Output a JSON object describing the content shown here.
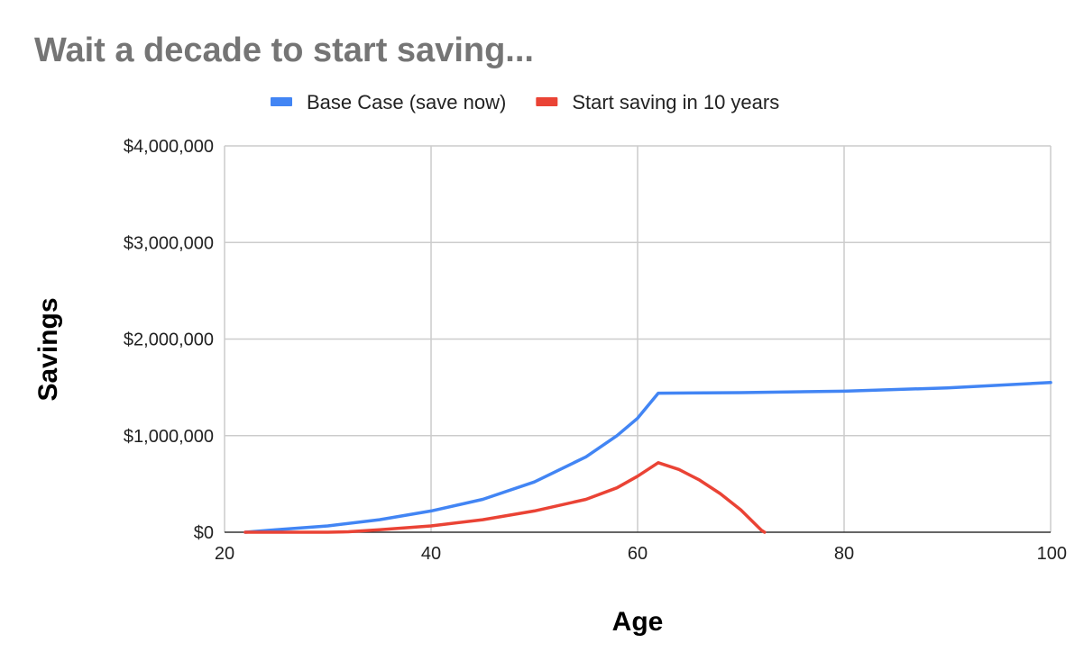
{
  "chart_data": {
    "type": "line",
    "title": "Wait a decade to start saving...",
    "xlabel": "Age",
    "ylabel": "Savings",
    "xlim": [
      20,
      100
    ],
    "ylim": [
      0,
      4000000
    ],
    "x_ticks": [
      20,
      40,
      60,
      80,
      100
    ],
    "x_tick_labels": [
      "20",
      "40",
      "60",
      "80",
      "100"
    ],
    "y_ticks": [
      0,
      1000000,
      2000000,
      3000000,
      4000000
    ],
    "y_tick_labels": [
      "$0",
      "$1,000,000",
      "$2,000,000",
      "$3,000,000",
      "$4,000,000"
    ],
    "grid": true,
    "legend_position": "top",
    "series": [
      {
        "name": "Base Case (save now)",
        "color": "#4285f4",
        "points": [
          [
            22,
            0
          ],
          [
            25,
            25000
          ],
          [
            30,
            65000
          ],
          [
            35,
            130000
          ],
          [
            40,
            220000
          ],
          [
            45,
            340000
          ],
          [
            50,
            520000
          ],
          [
            55,
            780000
          ],
          [
            58,
            1000000
          ],
          [
            60,
            1180000
          ],
          [
            62,
            1440000
          ],
          [
            70,
            1445000
          ],
          [
            80,
            1460000
          ],
          [
            90,
            1495000
          ],
          [
            100,
            1550000
          ]
        ]
      },
      {
        "name": "Start saving in 10 years",
        "color": "#ea4335",
        "points": [
          [
            22,
            0
          ],
          [
            30,
            0
          ],
          [
            32,
            5000
          ],
          [
            35,
            25000
          ],
          [
            40,
            65000
          ],
          [
            45,
            130000
          ],
          [
            50,
            220000
          ],
          [
            55,
            340000
          ],
          [
            58,
            460000
          ],
          [
            60,
            580000
          ],
          [
            62,
            720000
          ],
          [
            64,
            650000
          ],
          [
            66,
            540000
          ],
          [
            68,
            400000
          ],
          [
            70,
            230000
          ],
          [
            72,
            20000
          ],
          [
            72.3,
            0
          ]
        ]
      }
    ]
  }
}
